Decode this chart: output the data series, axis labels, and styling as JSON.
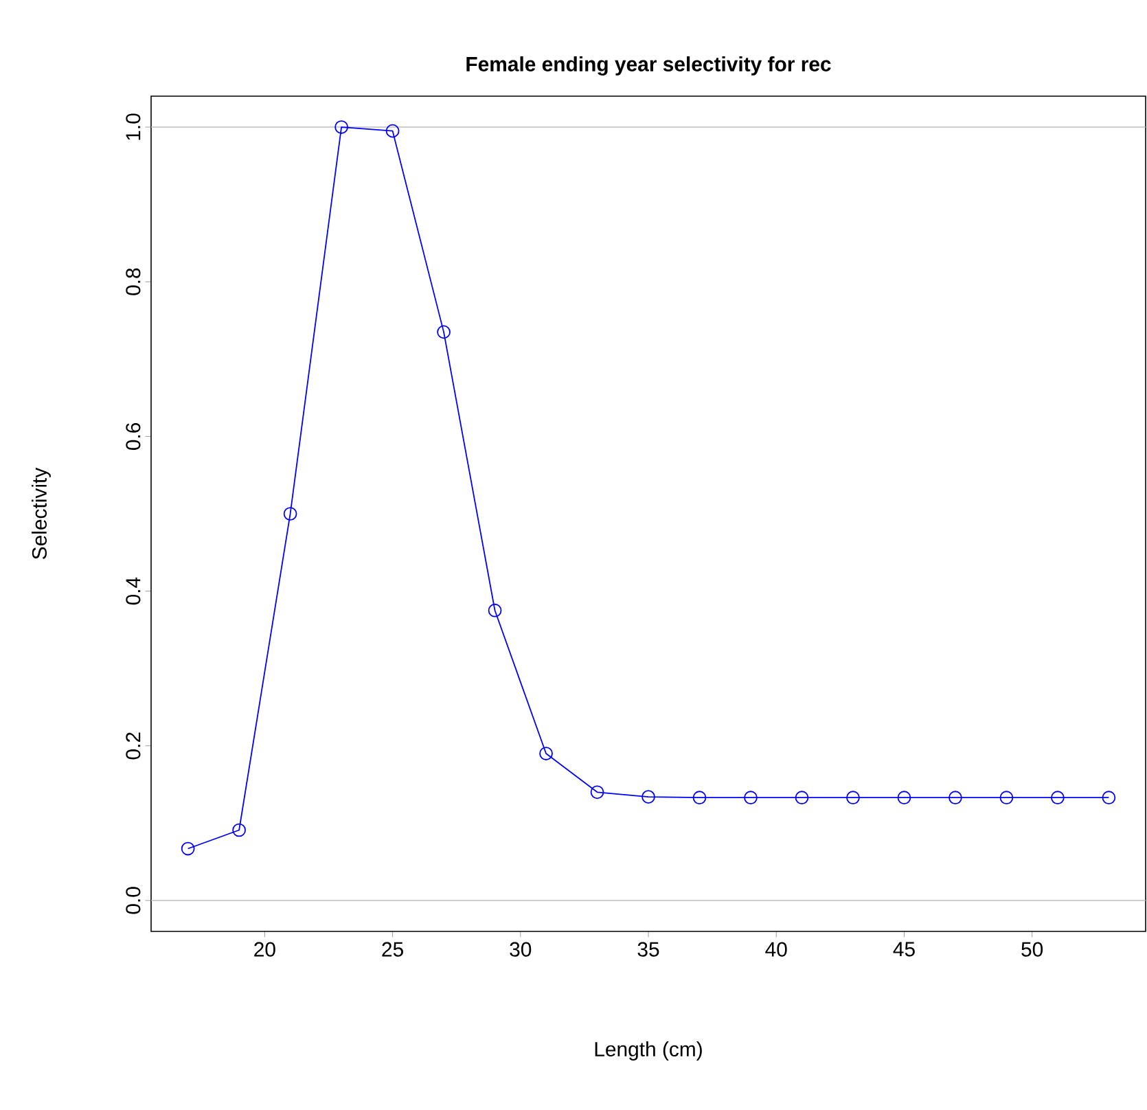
{
  "chart_data": {
    "type": "line",
    "title": "Female ending year selectivity for rec",
    "xlabel": "Length (cm)",
    "ylabel": "Selectivity",
    "x": [
      17,
      19,
      21,
      23,
      25,
      27,
      29,
      31,
      33,
      35,
      37,
      39,
      41,
      43,
      45,
      47,
      49,
      51,
      53
    ],
    "series": [
      {
        "color": "#0000ff",
        "values": [
          0.067,
          0.091,
          0.5,
          1.0,
          0.995,
          0.735,
          0.375,
          0.19,
          0.14,
          0.134,
          0.133,
          0.133,
          0.133,
          0.133,
          0.133,
          0.133,
          0.133,
          0.133,
          0.133
        ]
      }
    ],
    "xlim": [
      15.56,
      54.44
    ],
    "ylim": [
      -0.04,
      1.04
    ],
    "xticks": [
      20,
      25,
      30,
      35,
      40,
      45,
      50
    ],
    "yticks": [
      {
        "value": 0,
        "label": "0.0"
      },
      {
        "value": 0.2,
        "label": "0.2"
      },
      {
        "value": 0.4,
        "label": "0.4"
      },
      {
        "value": 0.6,
        "label": "0.6"
      },
      {
        "value": 0.8,
        "label": "0.8"
      },
      {
        "value": 1.0,
        "label": "1.0"
      }
    ],
    "ref_lines": [
      {
        "axis": "y",
        "value": 0,
        "color": "#bebebe"
      },
      {
        "axis": "y",
        "value": 1,
        "color": "#bebebe"
      }
    ],
    "marker": "circle",
    "line_style": "solid"
  }
}
